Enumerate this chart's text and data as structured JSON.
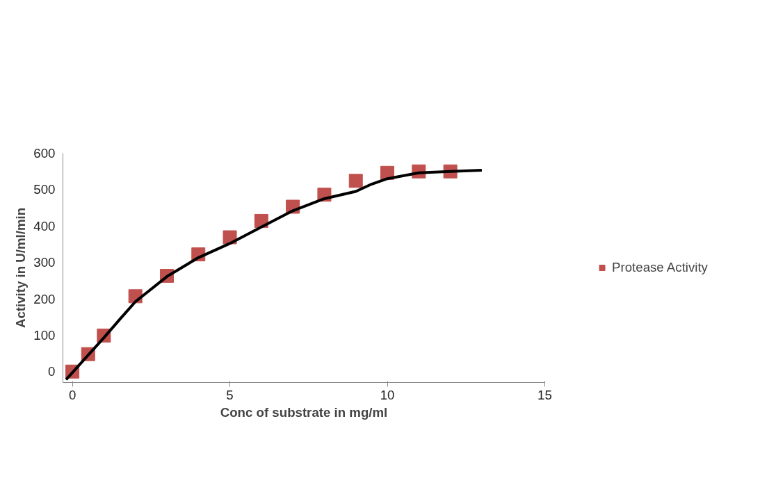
{
  "chart_data": {
    "type": "scatter",
    "xlabel": "Conc of substrate in mg/ml",
    "ylabel": "Activity in U/ml/min",
    "xlim": [
      -0.3,
      15
    ],
    "ylim": [
      -30,
      600
    ],
    "xticks": [
      0,
      5,
      10,
      15
    ],
    "yticks": [
      0,
      100,
      200,
      300,
      400,
      500,
      600
    ],
    "grid": false,
    "legend": "right",
    "series": [
      {
        "name": "Protease Activity",
        "color": "#c0504d",
        "marker": "square",
        "x": [
          0,
          0.5,
          1,
          2,
          3,
          4,
          5,
          6,
          7,
          8,
          9,
          10,
          11,
          12
        ],
        "values": [
          0,
          48,
          99,
          207,
          263,
          322,
          369,
          414,
          453,
          486,
          524,
          546,
          550,
          550
        ]
      },
      {
        "type": "line",
        "color": "#000000",
        "line_style": "solid",
        "x": [
          -0.2,
          0.5,
          1,
          1.5,
          2,
          3,
          4,
          5,
          6,
          7,
          8,
          9,
          9.5,
          10,
          11,
          12,
          13
        ],
        "values": [
          -22,
          45,
          93,
          143,
          192,
          261,
          313,
          352,
          397,
          442,
          475,
          495,
          515,
          530,
          546,
          550,
          553
        ]
      }
    ]
  }
}
